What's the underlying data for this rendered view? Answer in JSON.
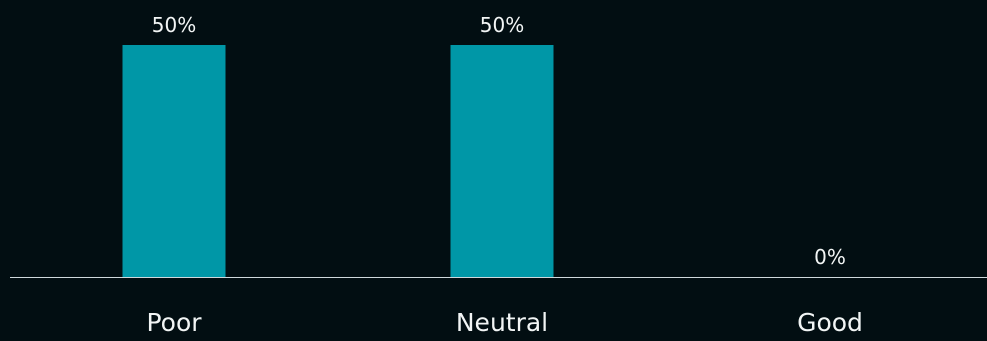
{
  "chart_data": {
    "type": "bar",
    "categories": [
      "Poor",
      "Neutral",
      "Good"
    ],
    "values": [
      50,
      50,
      0
    ],
    "value_labels": [
      "50%",
      "50%",
      "0%"
    ],
    "ylim": [
      0,
      50
    ],
    "grid": false,
    "legend": "none",
    "colors": {
      "background": "#020e12",
      "bar": "#0097a7",
      "axis": "#cfd8dc",
      "text": "#f2f5f5"
    }
  }
}
